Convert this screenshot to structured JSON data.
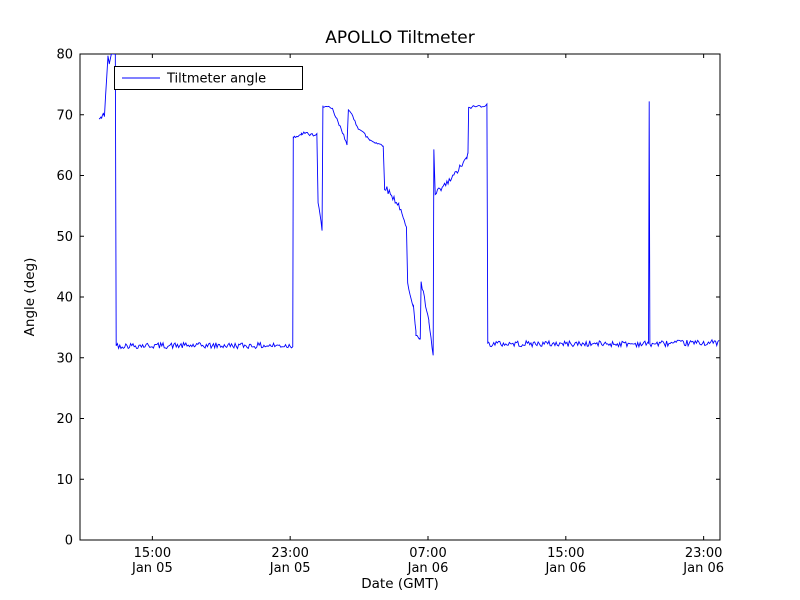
{
  "figure": {
    "title": "APOLLO Tiltmeter",
    "xlabel": "Date (GMT)",
    "ylabel": "Angle (deg)"
  },
  "chart_data": {
    "type": "line",
    "title": "APOLLO Tiltmeter",
    "xlabel": "Date (GMT)",
    "ylabel": "Angle (deg)",
    "ylim": [
      0,
      80
    ],
    "xlim_hours": [
      10.8,
      47.95
    ],
    "x_hours_note": "hours measured from Jan 05 00:00 GMT",
    "yticks": [
      0,
      10,
      20,
      30,
      40,
      50,
      60,
      70,
      80
    ],
    "xticks": [
      {
        "hour": 15,
        "time": "15:00",
        "date": "Jan 05"
      },
      {
        "hour": 23,
        "time": "23:00",
        "date": "Jan 05"
      },
      {
        "hour": 31,
        "time": "07:00",
        "date": "Jan 06"
      },
      {
        "hour": 39,
        "time": "15:00",
        "date": "Jan 06"
      },
      {
        "hour": 47,
        "time": "23:00",
        "date": "Jan 06"
      }
    ],
    "grid": false,
    "legend": {
      "position": "upper-left",
      "entries": [
        {
          "label": "Tiltmeter angle",
          "color": "#0000ff"
        }
      ]
    },
    "series": [
      {
        "name": "Tiltmeter angle",
        "color": "#0000ff",
        "segments_format": "[x0_hour, y0_deg, x1_hour, y1_deg, noise_amp_deg]",
        "segments": [
          [
            11.9,
            69.3,
            12.05,
            69.5,
            0.25
          ],
          [
            12.05,
            69.5,
            12.15,
            70.3,
            0.2
          ],
          [
            12.15,
            70.3,
            12.22,
            69.7,
            0
          ],
          [
            12.22,
            69.7,
            12.42,
            79.6,
            0.3
          ],
          [
            12.42,
            79.6,
            12.5,
            78.4,
            0.15
          ],
          [
            12.5,
            78.4,
            12.62,
            80.0,
            0
          ],
          [
            12.62,
            80.0,
            12.85,
            80.0,
            0.1
          ],
          [
            12.85,
            80.0,
            12.9,
            32.3,
            0
          ],
          [
            12.9,
            32.0,
            23.15,
            32.0,
            0.5
          ],
          [
            23.15,
            32.0,
            23.18,
            66.4,
            0
          ],
          [
            23.18,
            66.4,
            23.65,
            66.5,
            0.3
          ],
          [
            23.65,
            67.0,
            24.55,
            66.6,
            0.3
          ],
          [
            24.55,
            66.6,
            24.62,
            55.5,
            0
          ],
          [
            24.62,
            55.5,
            24.85,
            51.2,
            0.3
          ],
          [
            24.85,
            51.2,
            24.9,
            71.5,
            0
          ],
          [
            24.9,
            71.5,
            25.45,
            70.9,
            0.25
          ],
          [
            25.45,
            70.9,
            26.3,
            65.3,
            0.3
          ],
          [
            26.3,
            65.3,
            26.38,
            70.9,
            0
          ],
          [
            26.38,
            70.9,
            26.95,
            67.9,
            0.3
          ],
          [
            26.95,
            67.9,
            27.6,
            65.9,
            0.3
          ],
          [
            27.6,
            65.9,
            28.4,
            64.9,
            0.25
          ],
          [
            28.4,
            64.9,
            28.48,
            58.2,
            0
          ],
          [
            28.48,
            58.2,
            29.3,
            55.2,
            0.55
          ],
          [
            29.3,
            55.2,
            29.75,
            51.3,
            0.35
          ],
          [
            29.75,
            51.3,
            29.82,
            42.3,
            0
          ],
          [
            29.82,
            42.3,
            30.15,
            38.6,
            0.45
          ],
          [
            30.15,
            38.6,
            30.3,
            34.0,
            0.4
          ],
          [
            30.3,
            34.0,
            30.55,
            33.0,
            0.35
          ],
          [
            30.55,
            33.0,
            30.6,
            42.5,
            0
          ],
          [
            30.6,
            42.5,
            31.05,
            35.8,
            0.45
          ],
          [
            31.05,
            35.8,
            31.3,
            30.4,
            0.35
          ],
          [
            31.3,
            30.4,
            31.34,
            64.2,
            0
          ],
          [
            31.34,
            64.2,
            31.42,
            56.8,
            0.2
          ],
          [
            31.42,
            56.8,
            32.3,
            59.2,
            0.6
          ],
          [
            32.3,
            59.2,
            33.25,
            62.8,
            0.5
          ],
          [
            33.25,
            62.8,
            33.32,
            63.6,
            0.2
          ],
          [
            33.32,
            63.6,
            33.36,
            71.2,
            0
          ],
          [
            33.36,
            71.2,
            34.42,
            71.6,
            0.25
          ],
          [
            34.42,
            71.6,
            34.47,
            32.3,
            0
          ],
          [
            34.47,
            32.3,
            43.8,
            32.3,
            0.5
          ],
          [
            43.8,
            32.3,
            43.84,
            72.2,
            0
          ],
          [
            43.84,
            72.2,
            43.88,
            32.2,
            0
          ],
          [
            43.88,
            32.3,
            47.9,
            32.5,
            0.5
          ]
        ]
      }
    ],
    "colors": {
      "line": "#0000ff",
      "axes": "#000000",
      "background": "#ffffff"
    }
  }
}
